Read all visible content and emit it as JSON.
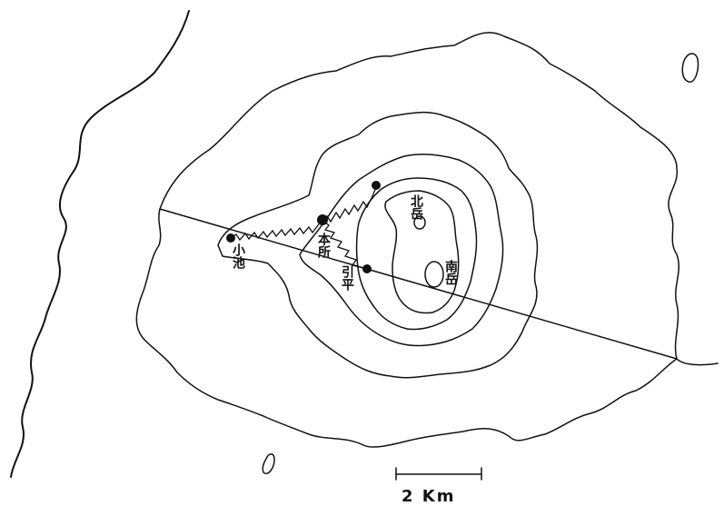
{
  "map": {
    "labels": {
      "koike": "小池",
      "honsho": "本所",
      "hikihira": "引平",
      "kitadake": "北岳",
      "minamidake": "南岳"
    },
    "scale": {
      "text": "2 Km"
    }
  }
}
